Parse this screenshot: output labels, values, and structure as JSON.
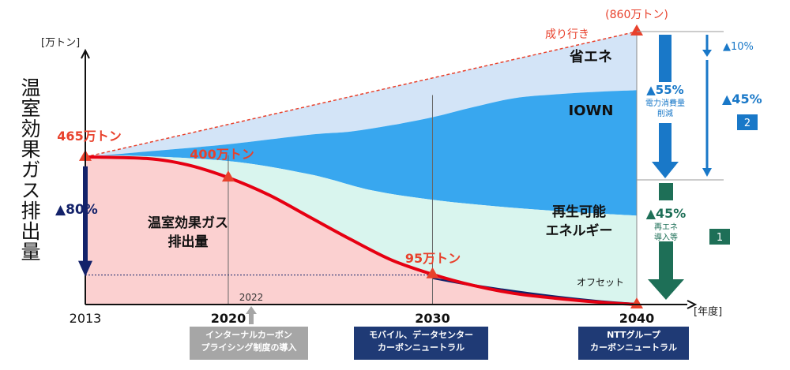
{
  "chart_data": {
    "type": "area",
    "unit_label": "[万トン]",
    "y_title": "温室効果ガス排出量",
    "x_unit_label": "[年度]",
    "x_ticks": [
      {
        "label": "2013",
        "x": 2013,
        "bold": false
      },
      {
        "label": "2020",
        "x": 2020,
        "bold": true
      },
      {
        "label": "2030",
        "x": 2030,
        "bold": true
      },
      {
        "label": "2040",
        "x": 2040,
        "bold": true
      }
    ],
    "x_range": [
      2013,
      2040
    ],
    "y_range": [
      0,
      860
    ],
    "series": [
      {
        "name": "温室効果ガス排出量",
        "color": "#e60012",
        "points": [
          [
            2013,
            465
          ],
          [
            2016,
            460
          ],
          [
            2018,
            440
          ],
          [
            2020,
            400
          ],
          [
            2022,
            345
          ],
          [
            2024,
            275
          ],
          [
            2026,
            205
          ],
          [
            2028,
            140
          ],
          [
            2030,
            95
          ],
          [
            2032,
            60
          ],
          [
            2034,
            35
          ],
          [
            2036,
            20
          ],
          [
            2038,
            8
          ],
          [
            2040,
            0
          ]
        ]
      },
      {
        "name": "成り行き",
        "color": "#e8412c",
        "points": [
          [
            2013,
            465
          ],
          [
            2040,
            860
          ]
        ]
      },
      {
        "name": "IOWN境界",
        "color": "#3aa0e6",
        "points": [
          [
            2013,
            465
          ],
          [
            2016,
            482
          ],
          [
            2020,
            505
          ],
          [
            2024,
            535
          ],
          [
            2026,
            545
          ],
          [
            2028,
            565
          ],
          [
            2030,
            590
          ],
          [
            2032,
            622
          ],
          [
            2034,
            650
          ],
          [
            2036,
            662
          ],
          [
            2038,
            670
          ],
          [
            2040,
            675
          ]
        ]
      },
      {
        "name": "再エネ境界",
        "color": "#bfe9e0",
        "points": [
          [
            2013,
            465
          ],
          [
            2015,
            469
          ],
          [
            2020,
            452
          ],
          [
            2024,
            410
          ],
          [
            2027,
            360
          ],
          [
            2030,
            330
          ],
          [
            2033,
            310
          ],
          [
            2036,
            295
          ],
          [
            2040,
            280
          ]
        ]
      }
    ],
    "annotations": {
      "start_value": "465万トン",
      "v2020": "400万トン",
      "v2030": "95万トン",
      "end_bau": "(860万トン)",
      "bau_label": "成り行き",
      "shoene": "省エネ",
      "iown": "IOWN",
      "saiene": "再生可能\nエネルギー",
      "offset": "オフセット",
      "ghg_area": "温室効果ガス\n排出量",
      "y2022": "2022",
      "reduction_left": "▲80%",
      "r10": "▲10%",
      "r55": "▲55%",
      "r55_sub": "電力消費量\n削減",
      "r45_right": "▲45%",
      "badge2": "2",
      "r45_green": "▲45%",
      "r45g_sub": "再エネ\n導入等",
      "badge1": "1"
    },
    "milestones": [
      {
        "year_label": "2022",
        "text": "インターナルカーボン\nプライシング制度の導入",
        "color": "#a6a6a6"
      },
      {
        "year_label": "2030",
        "text": "モバイル、データセンター\nカーボンニュートラル",
        "color": "#1f3a75"
      },
      {
        "year_label": "2040",
        "text": "NTTグループ\nカーボンニュートラル",
        "color": "#1f3a75"
      }
    ],
    "colors": {
      "ghg_fill": "#fbd0d0",
      "renew_fill": "#d9f5ee",
      "iown_fill": "#38a7ef",
      "shoene_fill": "#d3e4f7",
      "axis": "#111111",
      "arrow_blue": "#1978c8",
      "arrow_green": "#1e6f57",
      "arrow_navy": "#13226a",
      "marker": "#e8412c"
    }
  }
}
